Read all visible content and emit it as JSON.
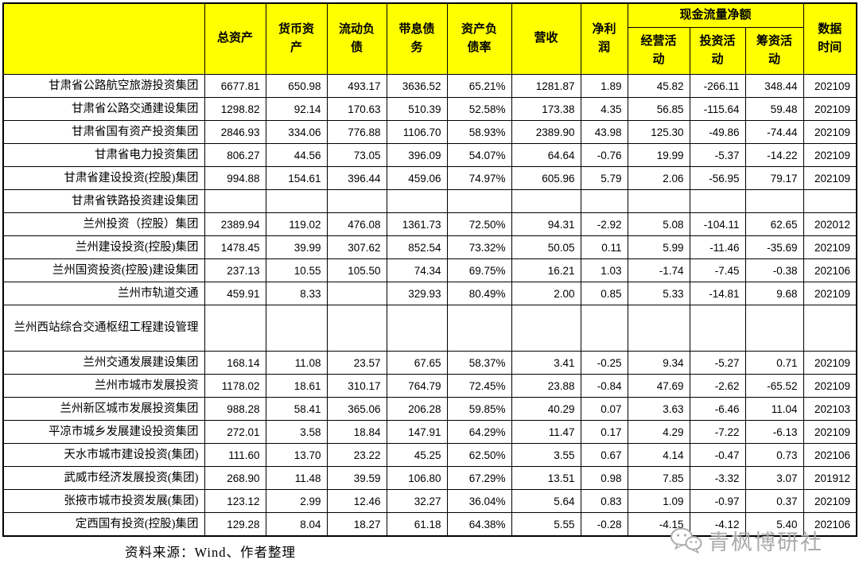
{
  "table": {
    "headers": {
      "name": "",
      "total_assets": "总资产",
      "monetary_assets": "货币资\n产",
      "current_liabilities": "流动负\n债",
      "interest_bearing_debt": "带息债\n务",
      "debt_ratio": "资产负\n债率",
      "revenue": "营收",
      "net_profit": "净利\n润",
      "cash_flow_group": "现金流量净额",
      "operating": "经营活\n动",
      "investing": "投资活\n动",
      "financing": "筹资活\n动",
      "data_date": "数据\n时间"
    },
    "rows": [
      {
        "name": "甘肃省公路航空旅游投资集团",
        "values": [
          "6677.81",
          "650.98",
          "493.17",
          "3636.52",
          "65.21%",
          "1281.87",
          "1.89",
          "45.82",
          "-266.11",
          "348.44",
          "202109"
        ]
      },
      {
        "name": "甘肃省公路交通建设集团",
        "values": [
          "1298.82",
          "92.14",
          "170.63",
          "510.39",
          "52.58%",
          "173.38",
          "4.35",
          "56.85",
          "-115.64",
          "59.48",
          "202109"
        ]
      },
      {
        "name": "甘肃省国有资产投资集团",
        "values": [
          "2846.93",
          "334.06",
          "776.88",
          "1106.70",
          "58.93%",
          "2389.90",
          "43.98",
          "125.30",
          "-49.86",
          "-74.44",
          "202109"
        ]
      },
      {
        "name": "甘肃省电力投资集团",
        "values": [
          "806.27",
          "44.56",
          "73.05",
          "396.09",
          "54.07%",
          "64.64",
          "-0.76",
          "19.99",
          "-5.37",
          "-14.22",
          "202109"
        ]
      },
      {
        "name": "甘肃省建设投资(控股)集团",
        "values": [
          "994.88",
          "154.61",
          "396.44",
          "459.06",
          "74.97%",
          "605.96",
          "5.79",
          "2.06",
          "-56.95",
          "79.17",
          "202109"
        ]
      },
      {
        "name": "甘肃省铁路投资建设集团",
        "values": [
          "",
          "",
          "",
          "",
          "",
          "",
          "",
          "",
          "",
          "",
          ""
        ]
      },
      {
        "name": "兰州投资（控股）集团",
        "values": [
          "2389.94",
          "119.02",
          "476.08",
          "1361.73",
          "72.50%",
          "94.31",
          "-2.92",
          "5.08",
          "-104.11",
          "62.65",
          "202012"
        ]
      },
      {
        "name": "兰州建设投资(控股)集团",
        "values": [
          "1478.45",
          "39.99",
          "307.62",
          "852.54",
          "73.32%",
          "50.05",
          "0.11",
          "5.99",
          "-11.46",
          "-35.69",
          "202109"
        ]
      },
      {
        "name": "兰州国资投资(控股)建设集团",
        "values": [
          "237.13",
          "10.55",
          "105.50",
          "74.34",
          "69.75%",
          "16.21",
          "1.03",
          "-1.74",
          "-7.45",
          "-0.38",
          "202106"
        ]
      },
      {
        "name": "兰州市轨道交通",
        "values": [
          "459.91",
          "8.33",
          "",
          "329.93",
          "80.49%",
          "2.00",
          "0.85",
          "5.33",
          "-14.81",
          "9.68",
          "202109"
        ]
      },
      {
        "name": "兰州西站综合交通枢纽工程建设管理",
        "tall": true,
        "values": [
          "",
          "",
          "",
          "",
          "",
          "",
          "",
          "",
          "",
          "",
          ""
        ]
      },
      {
        "name": "兰州交通发展建设集团",
        "values": [
          "168.14",
          "11.08",
          "23.57",
          "67.65",
          "58.37%",
          "3.41",
          "-0.25",
          "9.34",
          "-5.27",
          "0.71",
          "202109"
        ]
      },
      {
        "name": "兰州市城市发展投资",
        "values": [
          "1178.02",
          "18.61",
          "310.17",
          "764.79",
          "72.45%",
          "23.88",
          "-0.84",
          "47.69",
          "-2.62",
          "-65.52",
          "202109"
        ]
      },
      {
        "name": "兰州新区城市发展投资集团",
        "values": [
          "988.28",
          "58.41",
          "365.06",
          "206.28",
          "59.85%",
          "40.29",
          "0.07",
          "3.63",
          "-6.46",
          "11.04",
          "202103"
        ]
      },
      {
        "name": "平凉市城乡发展建设投资集团",
        "values": [
          "272.01",
          "3.58",
          "18.84",
          "147.91",
          "64.29%",
          "11.47",
          "0.17",
          "4.29",
          "-7.22",
          "-6.13",
          "202109"
        ]
      },
      {
        "name": "天水市城市建设投资(集团)",
        "values": [
          "111.60",
          "13.70",
          "23.22",
          "45.25",
          "62.50%",
          "3.55",
          "0.67",
          "4.14",
          "-0.47",
          "0.73",
          "202106"
        ]
      },
      {
        "name": "武威市经济发展投资(集团)",
        "values": [
          "268.90",
          "11.48",
          "39.59",
          "106.80",
          "67.29%",
          "13.51",
          "0.98",
          "7.85",
          "-3.32",
          "3.07",
          "201912"
        ]
      },
      {
        "name": "张掖市城市投资发展(集团)",
        "values": [
          "123.12",
          "2.99",
          "12.46",
          "32.27",
          "36.04%",
          "5.64",
          "0.83",
          "1.09",
          "-0.97",
          "0.37",
          "202109"
        ]
      },
      {
        "name": "定西国有投资(控股)集团",
        "values": [
          "129.28",
          "8.04",
          "18.27",
          "61.18",
          "64.38%",
          "5.55",
          "-0.28",
          "-4.15",
          "-4.12",
          "5.40",
          "202106"
        ]
      }
    ]
  },
  "footer": {
    "source": "资料来源：Wind、作者整理"
  },
  "watermark": {
    "label": "青枫博研社",
    "icon": "wechat-icon"
  },
  "colors": {
    "header_bg": "#FFFF00",
    "border": "#000000",
    "watermark_gray": "#ABABAB"
  }
}
